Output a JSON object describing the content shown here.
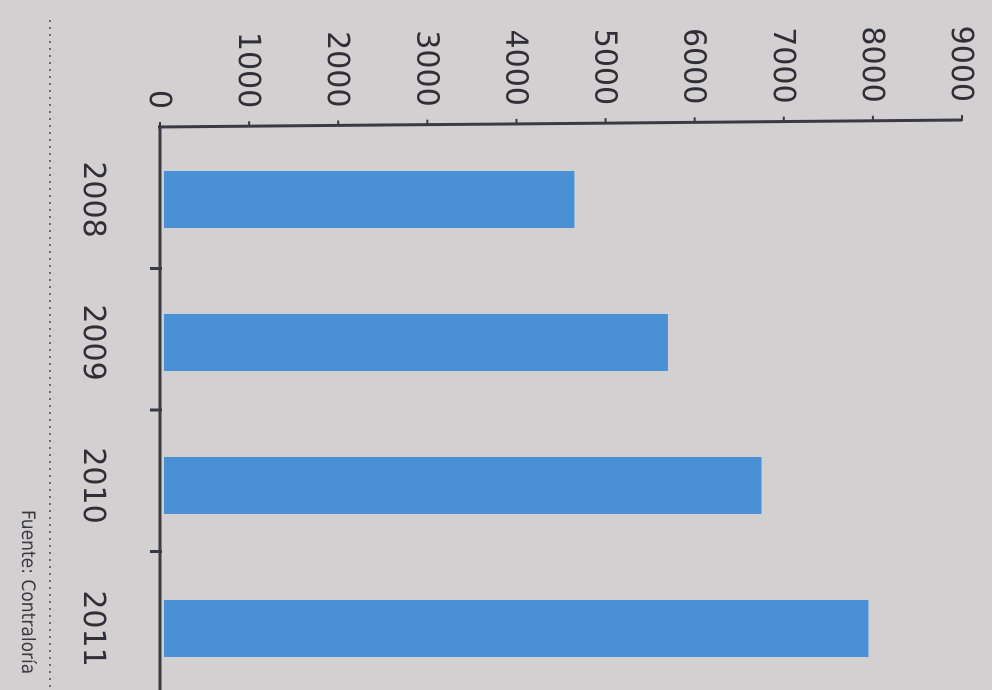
{
  "chart_data": {
    "type": "bar",
    "orientation": "horizontal",
    "categories": [
      "2008",
      "2009",
      "2010",
      "2011"
    ],
    "values": [
      4650,
      5700,
      6750,
      7950
    ],
    "title": "",
    "xlabel": "",
    "ylabel": "",
    "xlim": [
      0,
      9000
    ],
    "x_ticks": [
      "0",
      "1000",
      "2000",
      "3000",
      "4000",
      "5000",
      "6000",
      "7000",
      "8000",
      "9000"
    ],
    "grid": false,
    "bar_color": "#4a90d4",
    "source": "Fuente: Contraloría"
  }
}
